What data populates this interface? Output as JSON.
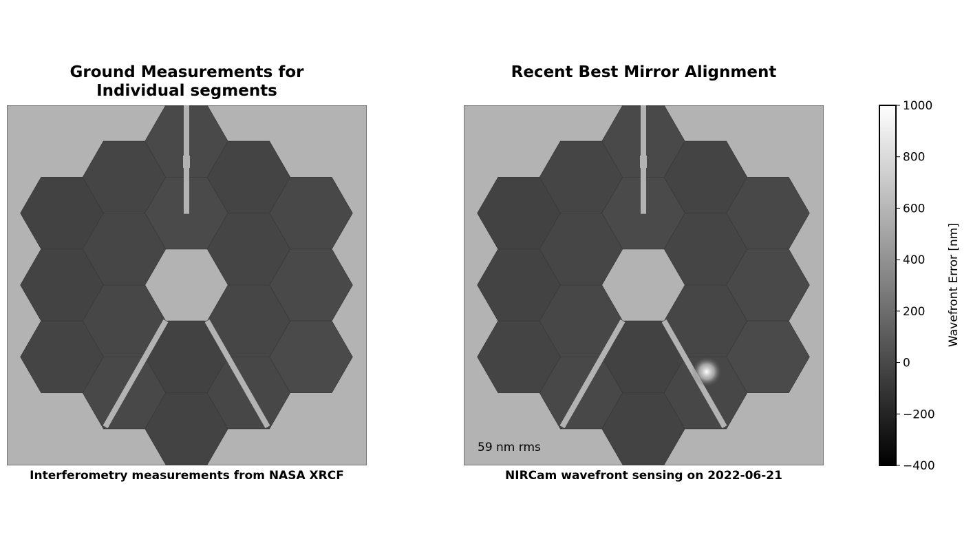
{
  "chart_data": {
    "type": "heatmap",
    "panels": [
      {
        "title": "Ground Measurements for\nIndividual segments",
        "title_lines": [
          "Ground Measurements for",
          "Individual segments"
        ],
        "caption": "Interferometry measurements from NASA XRCF",
        "annotation": ""
      },
      {
        "title": "Recent Best Mirror Alignment",
        "title_lines": [
          "Recent Best Mirror Alignment"
        ],
        "caption": "NIRCam wavefront sensing on 2022-06-21",
        "annotation": "59 nm rms"
      }
    ],
    "colorbar": {
      "label": "Wavefront Error [nm]",
      "range": [
        -400,
        1000
      ],
      "ticks": [
        1000,
        800,
        600,
        400,
        200,
        0,
        -200,
        -400
      ],
      "tick_labels": [
        "1000",
        "800",
        "600",
        "400",
        "200",
        "0",
        "−200",
        "−400"
      ],
      "colormap": "gray"
    },
    "segments_per_panel": 18,
    "colors": {
      "masked_background": "#b3b3b3",
      "segment_typical": "#494949",
      "colormap_low": "#000000",
      "colormap_high": "#ffffff"
    }
  }
}
